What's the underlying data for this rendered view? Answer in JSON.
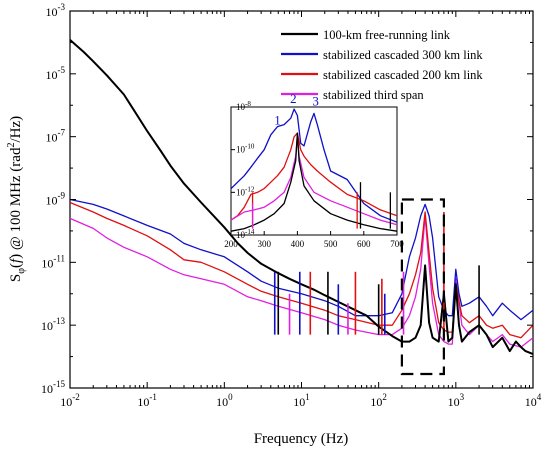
{
  "chart_data": {
    "type": "line",
    "title": "",
    "xlabel": "Frequency (Hz)",
    "ylabel": {
      "part1": "S",
      "sub": "φ",
      "part2": "(",
      "italic": "f",
      "part3": ") @ 100 MHz (rad",
      "sup": "2",
      "part4": "/Hz)"
    },
    "xscale": "log",
    "yscale": "log",
    "xlim": [
      0.01,
      10000
    ],
    "ylim": [
      1e-15,
      0.001
    ],
    "x_ticks": [
      {
        "base": "10",
        "exp": "-2"
      },
      {
        "base": "10",
        "exp": "-1"
      },
      {
        "base": "10",
        "exp": "0"
      },
      {
        "base": "10",
        "exp": "1"
      },
      {
        "base": "10",
        "exp": "2"
      },
      {
        "base": "10",
        "exp": "3"
      },
      {
        "base": "10",
        "exp": "4"
      }
    ],
    "y_ticks": [
      {
        "base": "10",
        "exp": "-15"
      },
      {
        "base": "10",
        "exp": "-13"
      },
      {
        "base": "10",
        "exp": "-11"
      },
      {
        "base": "10",
        "exp": "-9"
      },
      {
        "base": "10",
        "exp": "-7"
      },
      {
        "base": "10",
        "exp": "-5"
      },
      {
        "base": "10",
        "exp": "-3"
      }
    ],
    "legend_position": "top-right",
    "series": [
      {
        "name": "100-km free-running link",
        "color": "#000000",
        "x": [
          0.01,
          0.015,
          0.02,
          0.03,
          0.05,
          0.07,
          0.1,
          0.15,
          0.2,
          0.3,
          0.5,
          0.7,
          1,
          1.5,
          2,
          3,
          5,
          7,
          10,
          15,
          20,
          30,
          50,
          70,
          100,
          150,
          200,
          250,
          300,
          350,
          400,
          450,
          500,
          600,
          700,
          800,
          900,
          1000,
          1100,
          1200,
          1500,
          2000,
          2500,
          3000,
          4000,
          5000,
          6000,
          7000,
          8000,
          10000
        ],
        "y": [
          0.00012,
          5e-05,
          2.5e-05,
          9e-06,
          2.2e-06,
          6e-07,
          1.5e-07,
          3.5e-08,
          1.2e-08,
          3.2e-09,
          8e-10,
          3.3e-10,
          1.3e-10,
          4e-11,
          2e-11,
          9e-12,
          4.5e-12,
          3e-12,
          2e-12,
          1.3e-12,
          9e-13,
          5.5e-13,
          3e-13,
          2e-13,
          9e-14,
          4.5e-14,
          3e-14,
          3e-14,
          4e-14,
          1e-13,
          8e-12,
          1.2e-13,
          4e-14,
          3e-14,
          1e-12,
          3e-14,
          4e-14,
          2e-12,
          1e-13,
          3e-14,
          6e-14,
          1e-13,
          5e-14,
          2e-14,
          4e-14,
          1.5e-14,
          3e-14,
          2e-14,
          1.5e-14,
          1.2e-14
        ]
      },
      {
        "name": "stabilized cascaded 300 km link",
        "color": "#1010c8",
        "x": [
          0.01,
          0.02,
          0.03,
          0.05,
          0.1,
          0.2,
          0.3,
          0.5,
          1,
          2,
          3,
          5,
          10,
          20,
          30,
          50,
          100,
          150,
          200,
          250,
          300,
          350,
          400,
          450,
          500,
          600,
          700,
          800,
          900,
          1000,
          1100,
          1200,
          1500,
          2000,
          2500,
          3000,
          4000,
          5000,
          7000,
          10000
        ],
        "y": [
          1e-09,
          7e-10,
          5e-10,
          3e-10,
          1.5e-10,
          8e-11,
          4e-11,
          2.5e-11,
          1.5e-11,
          5e-12,
          2.5e-12,
          1.5e-12,
          1e-12,
          6e-13,
          4e-13,
          2e-13,
          2e-13,
          2.5e-13,
          1e-12,
          1.5e-11,
          6e-11,
          3e-10,
          7e-10,
          3e-10,
          6e-11,
          8e-13,
          3e-13,
          2e-13,
          2e-13,
          6e-12,
          1e-12,
          4e-13,
          5e-13,
          8e-13,
          4e-13,
          2e-13,
          5e-13,
          3e-13,
          1.5e-13,
          3e-13
        ]
      },
      {
        "name": "stabilized cascaded 200 km link",
        "color": "#e01010",
        "x": [
          0.01,
          0.02,
          0.03,
          0.05,
          0.1,
          0.2,
          0.3,
          0.5,
          1,
          2,
          3,
          5,
          10,
          20,
          30,
          50,
          100,
          150,
          200,
          250,
          300,
          350,
          400,
          450,
          500,
          600,
          700,
          800,
          900,
          1000,
          1200,
          1500,
          2000,
          2500,
          3000,
          4000,
          5000,
          7000,
          10000
        ],
        "y": [
          8e-10,
          4e-10,
          2.5e-10,
          1.5e-10,
          7e-11,
          2.5e-11,
          1.2e-11,
          1e-11,
          5e-12,
          2e-12,
          1.2e-12,
          8e-13,
          5e-13,
          3e-13,
          2e-13,
          1.5e-13,
          1e-13,
          1e-13,
          3e-13,
          1e-12,
          4e-12,
          2e-11,
          4e-10,
          2e-11,
          1.5e-12,
          1.2e-13,
          7e-14,
          6e-14,
          6e-14,
          2e-12,
          2e-13,
          1.2e-13,
          2e-13,
          1e-13,
          8e-14,
          1e-13,
          5e-14,
          4e-14,
          1e-13
        ]
      },
      {
        "name": "stabilized third span",
        "color": "#e020e0",
        "x": [
          0.01,
          0.02,
          0.03,
          0.05,
          0.1,
          0.2,
          0.3,
          0.5,
          1,
          2,
          3,
          5,
          10,
          20,
          30,
          50,
          100,
          150,
          200,
          250,
          300,
          350,
          400,
          450,
          500,
          600,
          700,
          800,
          900,
          1000,
          1200,
          1500,
          2000,
          2500,
          3000,
          4000,
          5000,
          7000,
          10000
        ],
        "y": [
          2.5e-10,
          1.2e-10,
          6e-11,
          3e-11,
          1.5e-11,
          6e-12,
          4e-12,
          3e-12,
          2e-12,
          8e-13,
          6e-13,
          4e-13,
          2.5e-13,
          1.5e-13,
          1e-13,
          7e-14,
          5e-14,
          5e-14,
          8e-14,
          2e-13,
          8e-13,
          6e-12,
          3e-10,
          8e-12,
          5e-13,
          5e-14,
          3e-14,
          2.5e-14,
          2.5e-14,
          3e-12,
          1e-13,
          5e-14,
          1e-13,
          5e-14,
          3e-14,
          5e-14,
          2.5e-14,
          2e-14,
          4e-14
        ]
      }
    ],
    "spurs": [
      {
        "color": "#000000",
        "x": [
          5,
          22,
          100,
          2000
        ],
        "y": [
          5e-12,
          5e-12,
          2e-12,
          8e-12
        ]
      },
      {
        "color": "#1010c8",
        "x": [
          4.5,
          9.5,
          30,
          120
        ],
        "y": [
          5e-12,
          5e-12,
          2e-12,
          1e-12
        ]
      },
      {
        "color": "#e01010",
        "x": [
          13,
          50,
          110,
          700
        ],
        "y": [
          5e-12,
          5e-12,
          3e-12,
          4e-10
        ]
      },
      {
        "color": "#e020e0",
        "x": [
          7,
          40,
          210
        ],
        "y": [
          1e-12,
          5e-13,
          5e-12
        ]
      }
    ],
    "inset": {
      "xlim": [
        200,
        700
      ],
      "ylim": [
        1e-14,
        1e-08
      ],
      "x_ticks": [
        "200",
        "300",
        "400",
        "500",
        "600",
        "700"
      ],
      "y_ticks": [
        {
          "base": "10",
          "exp": "-8"
        },
        {
          "base": "10",
          "exp": "-10"
        },
        {
          "base": "10",
          "exp": "-12"
        },
        {
          "base": "10",
          "exp": "-14"
        }
      ],
      "series": [
        {
          "color": "#1010c8",
          "x": [
            200,
            220,
            240,
            260,
            280,
            300,
            320,
            340,
            360,
            380,
            390,
            400,
            410,
            420,
            440,
            450,
            460,
            480,
            500,
            550,
            600,
            650,
            700
          ],
          "y": [
            1.5e-12,
            3e-12,
            6e-12,
            1.5e-11,
            4e-11,
            1e-10,
            5e-10,
            1.2e-09,
            1.5e-09,
            3e-09,
            8e-09,
            4e-09,
            2e-10,
            1.5e-10,
            2e-09,
            5e-09,
            1.5e-09,
            1e-10,
            1e-11,
            4e-12,
            3e-13,
            8e-14,
            4e-14
          ]
        },
        {
          "color": "#e01010",
          "x": [
            200,
            220,
            240,
            260,
            280,
            300,
            320,
            340,
            360,
            380,
            390,
            400,
            410,
            420,
            440,
            460,
            500,
            550,
            600,
            650,
            700
          ],
          "y": [
            5e-14,
            8e-14,
            2e-13,
            8e-13,
            1e-12,
            1.5e-12,
            3e-12,
            6e-12,
            1.5e-11,
            1e-10,
            4e-10,
            6e-10,
            1e-10,
            5e-11,
            2e-11,
            1e-11,
            3e-12,
            8e-13,
            4e-13,
            1.5e-13,
            8e-14
          ]
        },
        {
          "color": "#e020e0",
          "x": [
            200,
            240,
            270,
            300,
            330,
            360,
            380,
            395,
            400,
            405,
            420,
            450,
            500,
            550,
            600,
            650,
            700
          ],
          "y": [
            5e-14,
            1.2e-13,
            1.5e-13,
            2e-13,
            4e-13,
            1e-12,
            5e-12,
            5e-11,
            5e-10,
            5e-11,
            5e-12,
            1e-12,
            4e-13,
            2e-13,
            1e-13,
            5e-14,
            3e-14
          ]
        },
        {
          "color": "#000000",
          "x": [
            200,
            240,
            270,
            300,
            330,
            360,
            380,
            395,
            400,
            405,
            420,
            450,
            500,
            550,
            600,
            650,
            700
          ],
          "y": [
            1.5e-14,
            2e-14,
            3e-14,
            5e-14,
            1e-13,
            3e-13,
            3e-12,
            3e-11,
            6e-10,
            3e-11,
            2e-12,
            4e-13,
            1e-13,
            5e-14,
            3e-14,
            2e-14,
            1.5e-14
          ]
        }
      ],
      "spurs": [
        {
          "color": "#e01010",
          "x": [
            265,
            580
          ],
          "y": [
            1e-12,
            1e-12
          ]
        },
        {
          "color": "#e020e0",
          "x": [
            265
          ],
          "y": [
            3e-13
          ]
        },
        {
          "color": "#000000",
          "x": [
            590,
            680
          ],
          "y": [
            3e-12,
            1e-12
          ]
        }
      ],
      "peak_labels": [
        {
          "text": "1",
          "x": 340,
          "y": 1.5e-09
        },
        {
          "text": "2",
          "x": 388,
          "y": 1.5e-08
        },
        {
          "text": "3",
          "x": 455,
          "y": 1.2e-08
        }
      ],
      "peak_label_color": "#1010c8"
    },
    "highlight_box": {
      "x": [
        200,
        700
      ],
      "y": [
        1e-15,
        1e-09
      ]
    }
  }
}
